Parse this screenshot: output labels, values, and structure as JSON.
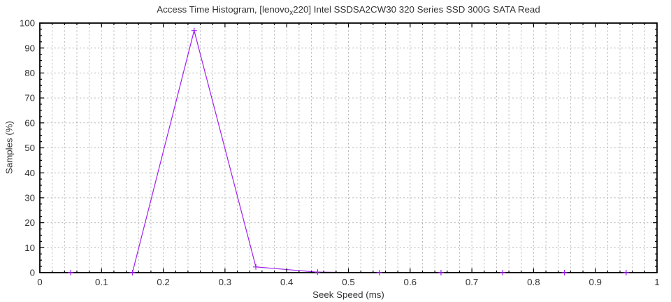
{
  "chart_data": {
    "type": "line",
    "title": {
      "prefix": "Access Time Histogram, [lenovo",
      "sub": "x",
      "suffix": "220] Intel SSDSA2CW30 320 Series SSD 300G SATA Read",
      "full": "Access Time Histogram, [lenovo_x220] Intel SSDSA2CW30 320 Series SSD 300G SATA Read"
    },
    "xlabel": "Seek Speed (ms)",
    "ylabel": "Samples (%)",
    "xlim": [
      0,
      1
    ],
    "ylim": [
      0,
      100
    ],
    "x_ticks": [
      0,
      0.1,
      0.2,
      0.3,
      0.4,
      0.5,
      0.6,
      0.7,
      0.8,
      0.9,
      1
    ],
    "x_tick_labels": [
      "0",
      "0.1",
      "0.2",
      "0.3",
      "0.4",
      "0.5",
      "0.6",
      "0.7",
      "0.8",
      "0.9",
      "1"
    ],
    "y_ticks": [
      0,
      10,
      20,
      30,
      40,
      50,
      60,
      70,
      80,
      90,
      100
    ],
    "y_tick_labels": [
      "0",
      "10",
      "20",
      "30",
      "40",
      "50",
      "60",
      "70",
      "80",
      "90",
      "100"
    ],
    "x_minor_step": 0.02,
    "y_minor_step": 2.5,
    "grid": {
      "vertical": "major+minor",
      "horizontal": "major",
      "style": "dashed"
    },
    "legend": "none",
    "series": [
      {
        "name": "access-time-samples",
        "marker": "plus",
        "x": [
          0.05,
          0.15,
          0.25,
          0.35,
          0.45,
          0.55,
          0.65,
          0.75,
          0.85,
          0.95
        ],
        "y": [
          0,
          0,
          97,
          2.3,
          0.2,
          0,
          0,
          0,
          0,
          0
        ]
      }
    ],
    "colors": {
      "line": "#a020f0",
      "grid": "#b3b3b3",
      "border": "#000000",
      "text": "#333333",
      "background": "#ffffff"
    }
  }
}
